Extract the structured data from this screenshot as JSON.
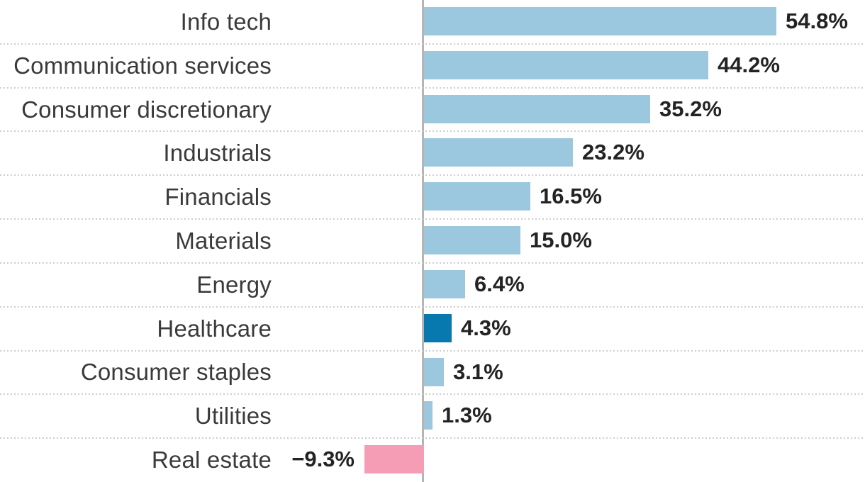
{
  "chart_data": {
    "type": "bar",
    "orientation": "horizontal",
    "title": "",
    "xlabel": "",
    "ylabel": "",
    "legend": "none",
    "grid": "dotted horizontal row separators",
    "x_axis": {
      "baseline_value": 0,
      "unit": "%",
      "xlim": [
        -10,
        60
      ]
    },
    "categories": [
      "Info tech",
      "Communication services",
      "Consumer discretionary",
      "Industrials",
      "Financials",
      "Materials",
      "Energy",
      "Healthcare",
      "Consumer staples",
      "Utilities",
      "Real estate"
    ],
    "values": [
      54.8,
      44.2,
      35.2,
      23.2,
      16.5,
      15.0,
      6.4,
      4.3,
      3.1,
      1.3,
      -9.3
    ],
    "bars": [
      {
        "category": "Info tech",
        "value": 54.8,
        "label": "54.8%",
        "role": "default"
      },
      {
        "category": "Communication services",
        "value": 44.2,
        "label": "44.2%",
        "role": "default"
      },
      {
        "category": "Consumer discretionary",
        "value": 35.2,
        "label": "35.2%",
        "role": "default"
      },
      {
        "category": "Industrials",
        "value": 23.2,
        "label": "23.2%",
        "role": "default"
      },
      {
        "category": "Financials",
        "value": 16.5,
        "label": "16.5%",
        "role": "default"
      },
      {
        "category": "Materials",
        "value": 15.0,
        "label": "15.0%",
        "role": "default"
      },
      {
        "category": "Energy",
        "value": 6.4,
        "label": "6.4%",
        "role": "default"
      },
      {
        "category": "Healthcare",
        "value": 4.3,
        "label": "4.3%",
        "role": "highlight"
      },
      {
        "category": "Consumer staples",
        "value": 3.1,
        "label": "3.1%",
        "role": "default"
      },
      {
        "category": "Utilities",
        "value": 1.3,
        "label": "1.3%",
        "role": "default"
      },
      {
        "category": "Real estate",
        "value": -9.3,
        "label": "−9.3%",
        "role": "negative"
      }
    ],
    "highlighted_category": "Healthcare",
    "negative_category": "Real estate",
    "colors": {
      "bar_default": "#9bc8de",
      "bar_highlight": "#0779ae",
      "bar_negative": "#f49db5",
      "category_text": "#3a3a3a",
      "value_text": "#232323",
      "axis_line": "#b5b5b5",
      "separator": "#cdcdcd",
      "background": "#ffffff"
    }
  }
}
